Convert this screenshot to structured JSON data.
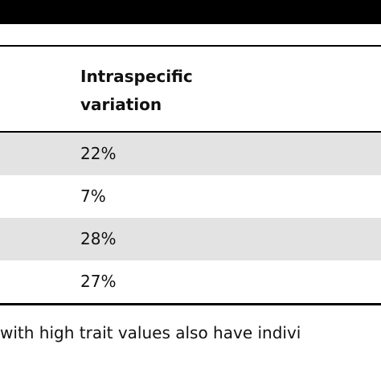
{
  "table": {
    "header": [
      "Intraspecific variation"
    ],
    "rows": [
      [
        "22%"
      ],
      [
        "7%"
      ],
      [
        "28%"
      ],
      [
        "27%"
      ]
    ]
  },
  "footnote": "with high trait values also have indivi"
}
